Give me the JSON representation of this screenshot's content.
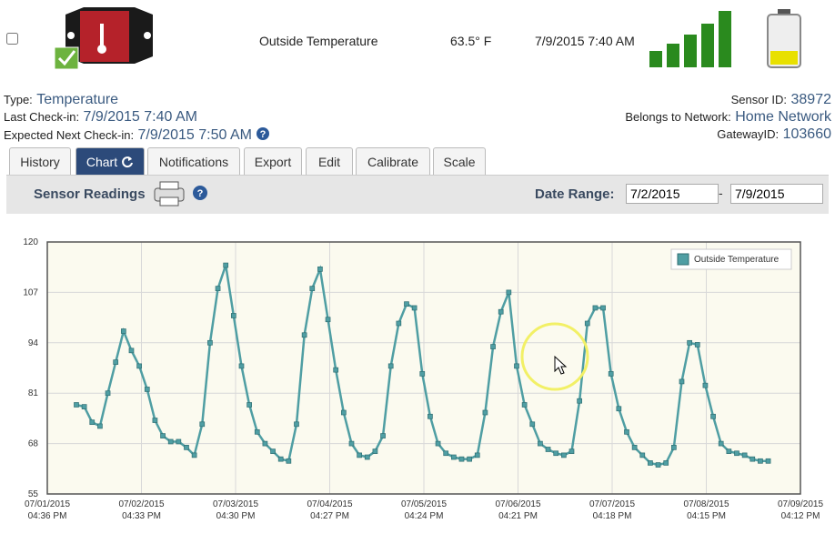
{
  "header": {
    "sensor_name": "Outside Temperature",
    "reading": "63.5° F",
    "timestamp": "7/9/2015 7:40 AM"
  },
  "info": {
    "type_label": "Type:",
    "type": "Temperature",
    "last_checkin_label": "Last Check-in:",
    "last_checkin": "7/9/2015 7:40 AM",
    "next_checkin_label": "Expected Next Check-in:",
    "next_checkin": "7/9/2015 7:50 AM",
    "sensor_id_label": "Sensor ID:",
    "sensor_id": "38972",
    "network_label": "Belongs to Network:",
    "network": "Home Network",
    "gateway_label": "GatewayID:",
    "gateway": "103660"
  },
  "tabs": [
    "History",
    "Chart",
    "Notifications",
    "Export",
    "Edit",
    "Calibrate",
    "Scale"
  ],
  "toolbar": {
    "title": "Sensor Readings",
    "date_range_label": "Date Range:",
    "from": "7/2/2015",
    "to": "7/9/2015"
  },
  "chart_data": {
    "type": "line",
    "series": [
      {
        "name": "Outside Temperature",
        "color": "#4f9ea3",
        "x": [
          "2015-07-02T00:00",
          "2015-07-02T02:00",
          "2015-07-02T04:00",
          "2015-07-02T06:00",
          "2015-07-02T08:00",
          "2015-07-02T10:00",
          "2015-07-02T12:00",
          "2015-07-02T14:00",
          "2015-07-02T16:00",
          "2015-07-02T18:00",
          "2015-07-02T20:00",
          "2015-07-02T22:00",
          "2015-07-03T00:00",
          "2015-07-03T02:00",
          "2015-07-03T04:00",
          "2015-07-03T06:00",
          "2015-07-03T08:00",
          "2015-07-03T10:00",
          "2015-07-03T12:00",
          "2015-07-03T14:00",
          "2015-07-03T16:00",
          "2015-07-03T18:00",
          "2015-07-03T20:00",
          "2015-07-03T22:00",
          "2015-07-04T00:00",
          "2015-07-04T02:00",
          "2015-07-04T04:00",
          "2015-07-04T06:00",
          "2015-07-04T08:00",
          "2015-07-04T10:00",
          "2015-07-04T12:00",
          "2015-07-04T14:00",
          "2015-07-04T16:00",
          "2015-07-04T18:00",
          "2015-07-04T20:00",
          "2015-07-04T22:00",
          "2015-07-05T00:00",
          "2015-07-05T02:00",
          "2015-07-05T04:00",
          "2015-07-05T06:00",
          "2015-07-05T08:00",
          "2015-07-05T10:00",
          "2015-07-05T12:00",
          "2015-07-05T14:00",
          "2015-07-05T16:00",
          "2015-07-05T18:00",
          "2015-07-05T20:00",
          "2015-07-05T22:00",
          "2015-07-06T00:00",
          "2015-07-06T02:00",
          "2015-07-06T04:00",
          "2015-07-06T06:00",
          "2015-07-06T08:00",
          "2015-07-06T10:00",
          "2015-07-06T12:00",
          "2015-07-06T14:00",
          "2015-07-06T16:00",
          "2015-07-06T18:00",
          "2015-07-06T20:00",
          "2015-07-06T22:00",
          "2015-07-07T00:00",
          "2015-07-07T02:00",
          "2015-07-07T04:00",
          "2015-07-07T06:00",
          "2015-07-07T08:00",
          "2015-07-07T10:00",
          "2015-07-07T12:00",
          "2015-07-07T14:00",
          "2015-07-07T16:00",
          "2015-07-07T18:00",
          "2015-07-07T20:00",
          "2015-07-07T22:00",
          "2015-07-08T00:00",
          "2015-07-08T02:00",
          "2015-07-08T04:00",
          "2015-07-08T06:00",
          "2015-07-08T08:00",
          "2015-07-08T10:00",
          "2015-07-08T12:00",
          "2015-07-08T14:00",
          "2015-07-08T16:00",
          "2015-07-08T18:00",
          "2015-07-08T20:00",
          "2015-07-08T22:00",
          "2015-07-09T00:00",
          "2015-07-09T02:00",
          "2015-07-09T04:00",
          "2015-07-09T06:00",
          "2015-07-09T08:00"
        ],
        "values": [
          78,
          77.5,
          73.5,
          72.5,
          81,
          89,
          97,
          92,
          88,
          82,
          74,
          70,
          68.5,
          68.5,
          67,
          65,
          73,
          94,
          108,
          114,
          101,
          88,
          78,
          71,
          68,
          66,
          64,
          63.5,
          73,
          96,
          108,
          113,
          100,
          87,
          76,
          68,
          65,
          64.5,
          66,
          70,
          88,
          99,
          104,
          103,
          86,
          75,
          68,
          65.5,
          64.5,
          64,
          64,
          65,
          76,
          93,
          102,
          107,
          88,
          78,
          73,
          68,
          66.5,
          65.5,
          65,
          66,
          79,
          99,
          103,
          103,
          86,
          77,
          71,
          67,
          65,
          63,
          62.5,
          63,
          67,
          84,
          94,
          93.5,
          83,
          75,
          68,
          66,
          65.5,
          65,
          64,
          63.5,
          63.5
        ]
      }
    ],
    "xlim": [
      "2015-07-01T16:36",
      "2015-07-09T16:12"
    ],
    "xticks": [
      {
        "value": "2015-07-01T16:36",
        "label": "07/01/2015 04:36 PM"
      },
      {
        "value": "2015-07-02T16:33",
        "label": "07/02/2015 04:33 PM"
      },
      {
        "value": "2015-07-03T16:30",
        "label": "07/03/2015 04:30 PM"
      },
      {
        "value": "2015-07-04T16:27",
        "label": "07/04/2015 04:27 PM"
      },
      {
        "value": "2015-07-05T16:24",
        "label": "07/05/2015 04:24 PM"
      },
      {
        "value": "2015-07-06T16:21",
        "label": "07/06/2015 04:21 PM"
      },
      {
        "value": "2015-07-07T16:18",
        "label": "07/07/2015 04:18 PM"
      },
      {
        "value": "2015-07-08T16:15",
        "label": "07/08/2015 04:15 PM"
      },
      {
        "value": "2015-07-09T16:12",
        "label": "07/09/2015 04:12 PM"
      }
    ],
    "ylim": [
      55,
      120
    ],
    "yticks": [
      55,
      68,
      81,
      94,
      107,
      120
    ],
    "grid": true,
    "legend": "top-right"
  }
}
